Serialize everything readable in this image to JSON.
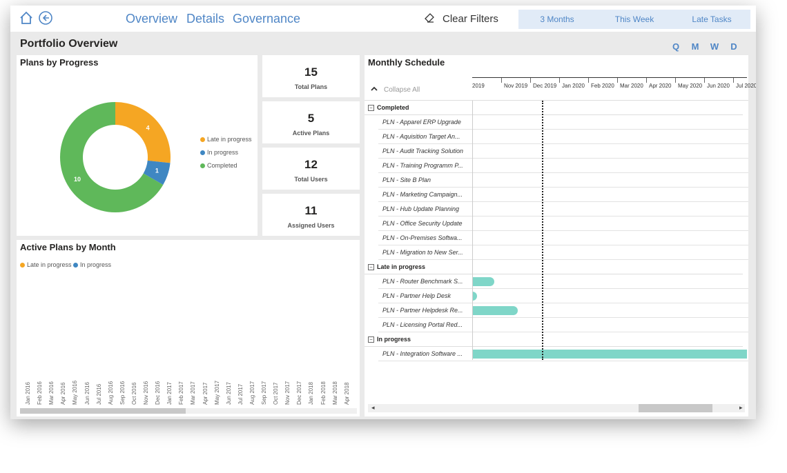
{
  "nav": {
    "links": [
      "Overview",
      "Details",
      "Governance"
    ],
    "clear_filters": "Clear Filters",
    "range_tabs": [
      "3 Months",
      "This Week",
      "Late Tasks"
    ]
  },
  "page_title": "Portfolio Overview",
  "period_buttons": [
    "Q",
    "M",
    "W",
    "D"
  ],
  "plans_by_progress": {
    "title": "Plans by Progress",
    "legend": [
      "Late in progress",
      "In progress",
      "Completed"
    ],
    "chart_data": {
      "type": "pie",
      "categories": [
        "Late in progress",
        "In progress",
        "Completed"
      ],
      "values": [
        4,
        1,
        10
      ],
      "colors": [
        "#f5a623",
        "#3f87c2",
        "#5fb85a"
      ]
    }
  },
  "kpis": [
    {
      "value": "15",
      "label": "Total Plans"
    },
    {
      "value": "5",
      "label": "Active Plans"
    },
    {
      "value": "12",
      "label": "Total Users"
    },
    {
      "value": "11",
      "label": "Assigned Users"
    }
  ],
  "active_plans_by_month": {
    "title": "Active Plans by Month",
    "legend": [
      "Late in progress",
      "In progress"
    ],
    "months": [
      "Jan 2016",
      "Feb 2016",
      "Mar 2016",
      "Apr 2016",
      "May 2016",
      "Jun 2016",
      "Jul 2016",
      "Aug 2016",
      "Sep 2016",
      "Oct 2016",
      "Nov 2016",
      "Dec 2016",
      "Jan 2017",
      "Feb 2017",
      "Mar 2017",
      "Apr 2017",
      "May 2017",
      "Jun 2017",
      "Jul 2017",
      "Aug 2017",
      "Sep 2017",
      "Oct 2017",
      "Nov 2017",
      "Dec 2017",
      "Jan 2018",
      "Feb 2018",
      "Mar 2018",
      "Apr 2018"
    ]
  },
  "schedule": {
    "title": "Monthly Schedule",
    "collapse_all": "Collapse All",
    "months": [
      "2019",
      "Nov 2019",
      "Dec 2019",
      "Jan 2020",
      "Feb 2020",
      "Mar 2020",
      "Apr 2020",
      "May 2020",
      "Jun 2020",
      "Jul 2020"
    ],
    "groups": [
      {
        "name": "Completed",
        "toggle": "−",
        "items": [
          {
            "label": "PLN - Apparel ERP Upgrade"
          },
          {
            "label": "PLN - Aquisition Target An..."
          },
          {
            "label": "PLN - Audit Tracking Solution"
          },
          {
            "label": "PLN - Training Programm P..."
          },
          {
            "label": "PLN - Site B Plan"
          },
          {
            "label": "PLN - Marketing Campaign..."
          },
          {
            "label": "PLN - Hub Update Planning"
          },
          {
            "label": "PLN - Office Security Update"
          },
          {
            "label": "PLN - On-Premises Softwa..."
          },
          {
            "label": "PLN - Migration to New Ser..."
          }
        ]
      },
      {
        "name": "Late in progress",
        "toggle": "−",
        "items": [
          {
            "label": "PLN - Router Benchmark S...",
            "bar_end_fraction": 0.08
          },
          {
            "label": "PLN - Partner Help Desk",
            "bar_end_fraction": 0.018
          },
          {
            "label": "PLN - Partner Helpdesk Re...",
            "bar_end_fraction": 0.167
          },
          {
            "label": "PLN - Licensing Portal Red..."
          }
        ]
      },
      {
        "name": "In progress",
        "toggle": "−",
        "items": [
          {
            "label": "PLN - Integration Software ...",
            "bar_end_fraction": 1.0
          }
        ]
      }
    ]
  }
}
